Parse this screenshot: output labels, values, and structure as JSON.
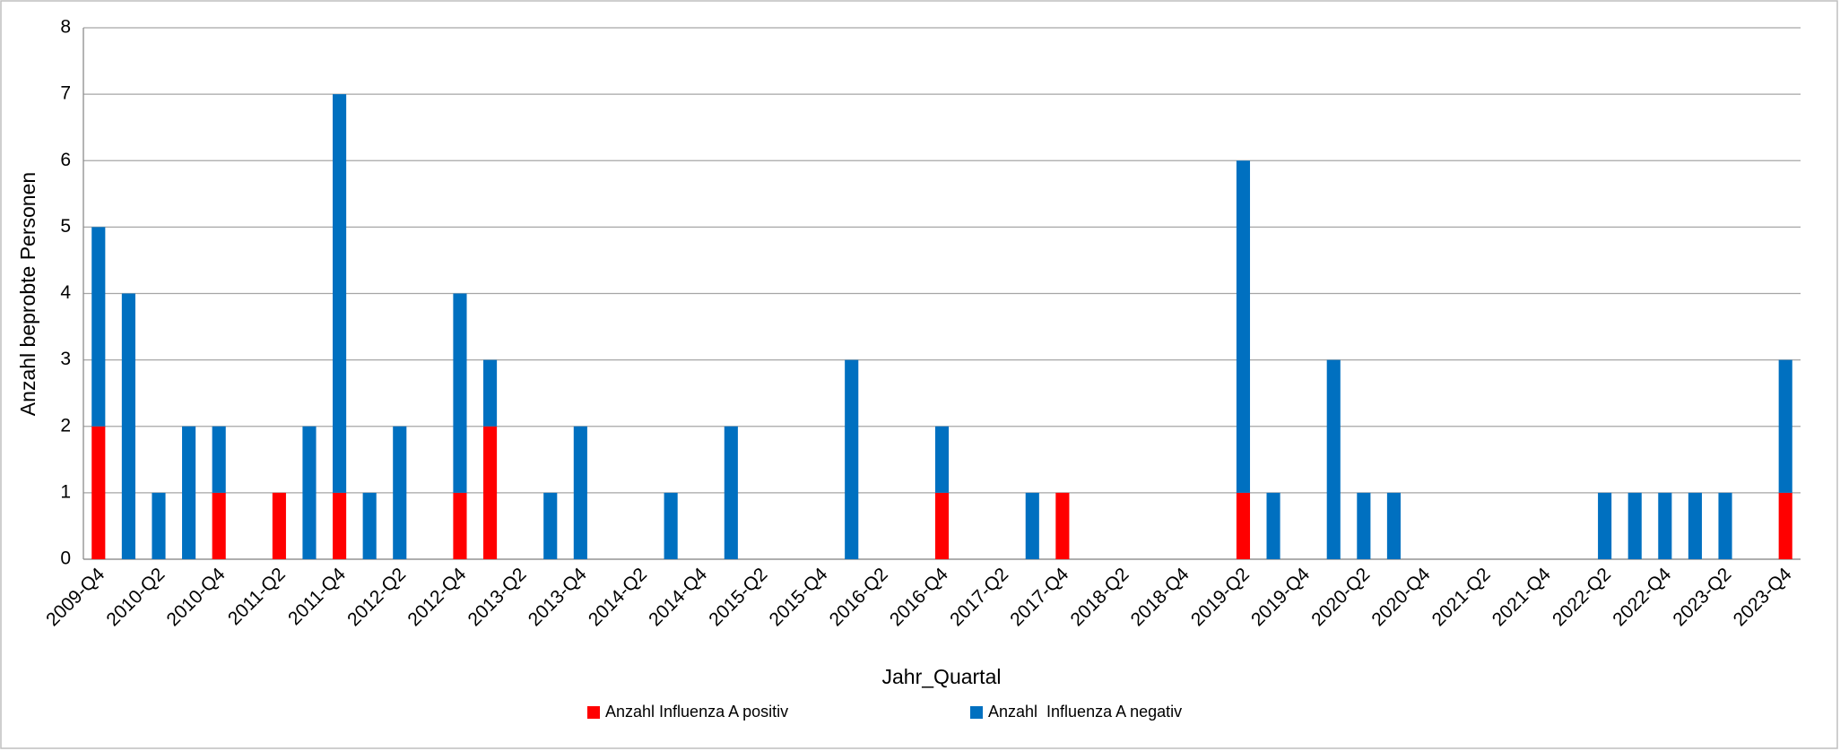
{
  "chart_data": {
    "type": "stacked_bar",
    "x_label": "Jahr_Quartal",
    "y_label": "Anzahl beprobte Personen",
    "categories": [
      "2009-Q4",
      null,
      "2010-Q2",
      null,
      "2010-Q4",
      null,
      "2011-Q2",
      null,
      "2011-Q4",
      null,
      "2012-Q2",
      null,
      "2012-Q4",
      null,
      "2013-Q2",
      null,
      "2013-Q4",
      null,
      "2014-Q2",
      null,
      "2014-Q4",
      null,
      "2015-Q2",
      null,
      "2015-Q4",
      null,
      "2016-Q2",
      null,
      "2016-Q4",
      null,
      "2017-Q2",
      null,
      "2017-Q4",
      null,
      "2018-Q2",
      null,
      "2018-Q4",
      null,
      "2019-Q2",
      null,
      "2019-Q4",
      null,
      "2020-Q2",
      null,
      "2020-Q4",
      null,
      "2021-Q2",
      null,
      "2021-Q4",
      null,
      "2022-Q2",
      null,
      "2022-Q4",
      null,
      "2023-Q2",
      null,
      "2023-Q4"
    ],
    "series": [
      {
        "name": "Anzahl Influenza A positiv",
        "color": "#ff0000",
        "values": [
          2,
          0,
          0,
          0,
          1,
          0,
          1,
          0,
          1,
          0,
          0,
          0,
          1,
          2,
          0,
          0,
          0,
          0,
          0,
          0,
          0,
          0,
          0,
          0,
          0,
          0,
          0,
          0,
          1,
          0,
          0,
          0,
          1,
          0,
          0,
          0,
          0,
          0,
          1,
          0,
          0,
          0,
          0,
          0,
          0,
          0,
          0,
          0,
          0,
          0,
          0,
          0,
          0,
          0,
          0,
          0,
          1
        ]
      },
      {
        "name": "Anzahl  Influenza A negativ",
        "color": "#0070c0",
        "values": [
          3,
          4,
          1,
          2,
          1,
          0,
          0,
          2,
          6,
          1,
          2,
          0,
          3,
          1,
          0,
          1,
          2,
          0,
          0,
          1,
          0,
          2,
          0,
          0,
          0,
          3,
          0,
          0,
          1,
          0,
          0,
          1,
          0,
          0,
          0,
          0,
          0,
          0,
          5,
          1,
          0,
          3,
          1,
          1,
          0,
          0,
          0,
          0,
          0,
          0,
          1,
          1,
          1,
          1,
          1,
          0,
          2
        ]
      }
    ],
    "ylim": [
      0,
      8
    ],
    "yticks": [
      0,
      1,
      2,
      3,
      4,
      5,
      6,
      7,
      8
    ],
    "grid": true,
    "legend": "bottom"
  }
}
